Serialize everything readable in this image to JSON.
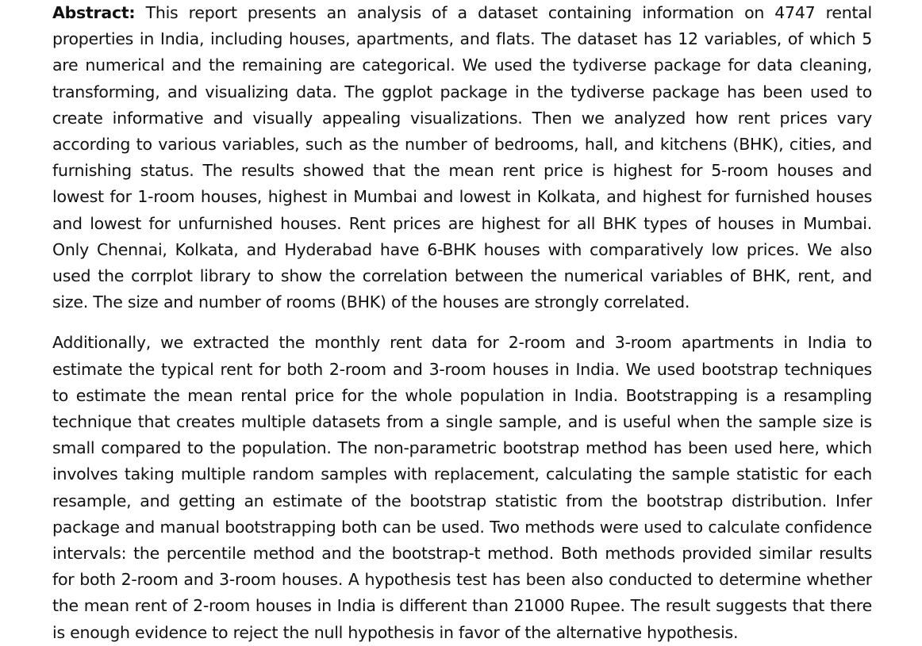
{
  "abstract": {
    "label": "Abstract:",
    "paragraph_1_text": "This report presents an analysis of a dataset containing information on 4747 rental properties in India, including houses, apartments, and flats. The dataset has 12 variables, of which 5 are numerical and the remaining are categorical. We used the tydiverse package for data cleaning, transforming, and visualizing data. The ggplot package in the tydiverse package has been used to create informative and visually appealing visualizations. Then we analyzed how rent prices vary according to various variables, such as the number of bedrooms, hall, and kitchens (BHK), cities, and furnishing status. The results showed that the mean rent price is highest for 5-room houses and lowest for 1-room houses, highest in Mumbai and lowest in Kolkata, and highest for furnished houses and lowest for unfurnished houses. Rent prices are highest for all BHK types of houses in Mumbai. Only Chennai, Kolkata, and Hyderabad have 6-BHK houses with comparatively low prices. We also used the corrplot library to show the correlation between the numerical variables of BHK, rent, and size. The size and number of rooms (BHK) of the houses are strongly correlated.",
    "paragraph_2_text": "Additionally, we extracted the monthly rent data for 2-room and 3-room apartments in India to estimate the typical rent for both 2-room and 3-room houses in India.  We used bootstrap techniques to estimate the mean rental price for the whole population in India. Bootstrapping is a resampling technique that creates multiple datasets from a single sample, and is useful when the sample size is small compared to the population. The non-parametric bootstrap method has been used here, which involves taking multiple random samples with replacement, calculating the sample statistic for each resample, and getting an estimate of the bootstrap statistic from the bootstrap distribution. Infer package and manual bootstrapping both can be used. Two methods were used to calculate confidence intervals: the percentile method and the bootstrap-t method. Both methods provided similar results for both 2-room and 3-room houses. A hypothesis test has been also conducted to determine whether the mean rent of 2-room houses in India is different than 21000 Rupee. The result suggests that there is enough evidence to reject the null hypothesis in favor of the alternative hypothesis."
  }
}
